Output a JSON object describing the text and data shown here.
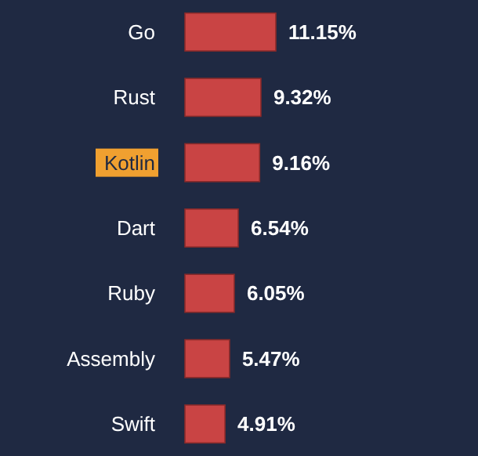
{
  "chart_data": {
    "type": "bar",
    "orientation": "horizontal",
    "categories": [
      "Go",
      "Rust",
      "Kotlin",
      "Dart",
      "Ruby",
      "Assembly",
      "Swift"
    ],
    "values": [
      11.15,
      9.32,
      9.16,
      6.54,
      6.05,
      5.47,
      4.91
    ],
    "value_labels": [
      "11.15%",
      "9.32%",
      "9.16%",
      "6.54%",
      "6.05%",
      "5.47%",
      "4.91%"
    ],
    "color": "#c94444",
    "xlim": [
      0,
      11.15
    ],
    "tick_labels": "y"
  }
}
